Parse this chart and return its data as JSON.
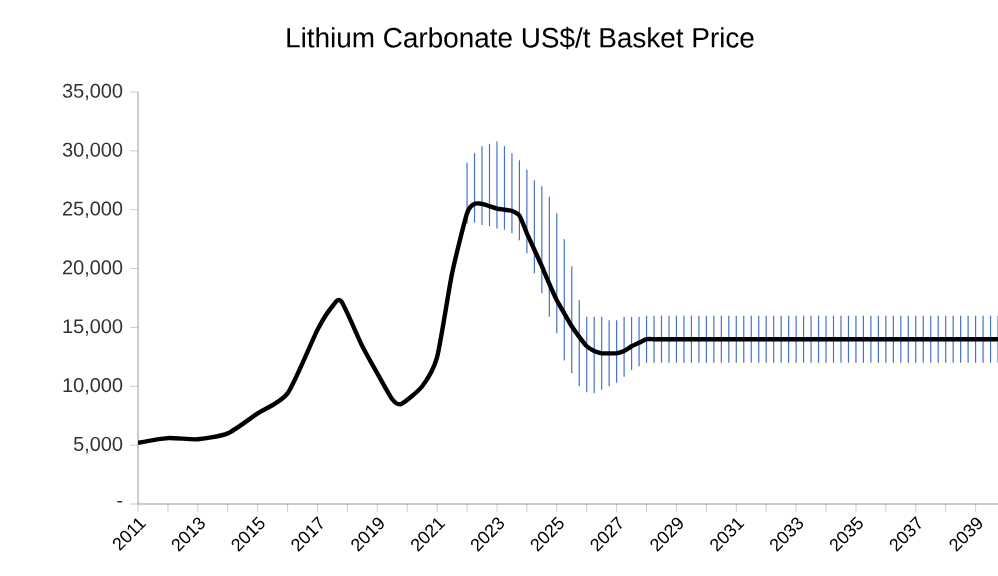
{
  "chart_data": {
    "type": "line",
    "title": "Lithium Carbonate US$/t Basket Price",
    "series": [
      {
        "color": "#000000",
        "marker": "none",
        "line_style": "solid",
        "x": [
          2011,
          2012,
          2013,
          2014,
          2015,
          2016,
          2017,
          2017.5,
          2017.8,
          2018.5,
          2019,
          2019.5,
          2019.8,
          2020.5,
          2021,
          2021.5,
          2022,
          2022.25,
          2022.5,
          2022.75,
          2023,
          2023.25,
          2023.5,
          2023.75,
          2024,
          2024.25,
          2024.5,
          2024.75,
          2025,
          2025.25,
          2025.5,
          2025.75,
          2026,
          2026.25,
          2026.5,
          2026.75,
          2027,
          2027.25,
          2027.5,
          2027.75,
          2028,
          2028.25,
          2028.5,
          2028.75,
          2029,
          2029.25,
          2029.5,
          2029.75,
          2030,
          2030.25,
          2030.5,
          2030.75,
          2031,
          2031.25,
          2031.5,
          2031.75,
          2032,
          2032.25,
          2032.5,
          2032.75,
          2033,
          2033.25,
          2033.5,
          2033.75,
          2034,
          2034.25,
          2034.5,
          2034.75,
          2035,
          2035.25,
          2035.5,
          2035.75,
          2036,
          2036.25,
          2036.5,
          2036.75,
          2037,
          2037.25,
          2037.5,
          2037.75,
          2038,
          2038.25,
          2038.5,
          2038.75,
          2039,
          2039.25,
          2039.5,
          2039.75
        ],
        "values": [
          5200,
          5600,
          5500,
          6000,
          7700,
          9400,
          14800,
          16800,
          17200,
          13400,
          11100,
          8900,
          8500,
          10000,
          12500,
          19600,
          24700,
          25500,
          25500,
          25300,
          25100,
          25000,
          24900,
          24500,
          23000,
          21600,
          20200,
          18700,
          17300,
          16200,
          15100,
          14200,
          13400,
          13000,
          12800,
          12800,
          12800,
          13000,
          13400,
          13700,
          14000,
          14000,
          14000,
          14000,
          14000,
          14000,
          14000,
          14000,
          14000,
          14000,
          14000,
          14000,
          14000,
          14000,
          14000,
          14000,
          14000,
          14000,
          14000,
          14000,
          14000,
          14000,
          14000,
          14000,
          14000,
          14000,
          14000,
          14000,
          14000,
          14000,
          14000,
          14000,
          14000,
          14000,
          14000,
          14000,
          14000,
          14000,
          14000,
          14000,
          14000,
          14000,
          14000,
          14000,
          14000,
          14000,
          14000,
          14000
        ],
        "errors": [
          null,
          null,
          null,
          null,
          null,
          null,
          null,
          null,
          null,
          null,
          null,
          null,
          null,
          null,
          null,
          null,
          [
            23800,
            29000
          ],
          [
            23900,
            29800
          ],
          [
            23700,
            30400
          ],
          [
            23600,
            30600
          ],
          [
            23400,
            30800
          ],
          [
            23300,
            30400
          ],
          [
            23000,
            29800
          ],
          [
            22400,
            29200
          ],
          [
            21300,
            28400
          ],
          [
            19600,
            27500
          ],
          [
            17900,
            27000
          ],
          [
            15900,
            26100
          ],
          [
            14500,
            24700
          ],
          [
            12200,
            22500
          ],
          [
            11100,
            20200
          ],
          [
            10000,
            17300
          ],
          [
            9500,
            15900
          ],
          [
            9400,
            15900
          ],
          [
            9700,
            15900
          ],
          [
            10000,
            15600
          ],
          [
            10300,
            15600
          ],
          [
            10800,
            15900
          ],
          [
            11400,
            15900
          ],
          [
            11700,
            15900
          ],
          [
            12000,
            16000
          ],
          [
            12000,
            16000
          ],
          [
            12000,
            16000
          ],
          [
            12000,
            16000
          ],
          [
            12000,
            16000
          ],
          [
            12000,
            16000
          ],
          [
            12000,
            16000
          ],
          [
            12000,
            16000
          ],
          [
            12000,
            16000
          ],
          [
            12000,
            16000
          ],
          [
            12000,
            16000
          ],
          [
            12000,
            16000
          ],
          [
            12000,
            16000
          ],
          [
            12000,
            16000
          ],
          [
            12000,
            16000
          ],
          [
            12000,
            16000
          ],
          [
            12000,
            16000
          ],
          [
            12000,
            16000
          ],
          [
            12000,
            16000
          ],
          [
            12000,
            16000
          ],
          [
            12000,
            16000
          ],
          [
            12000,
            16000
          ],
          [
            12000,
            16000
          ],
          [
            12000,
            16000
          ],
          [
            12000,
            16000
          ],
          [
            12000,
            16000
          ],
          [
            12000,
            16000
          ],
          [
            12000,
            16000
          ],
          [
            12000,
            16000
          ],
          [
            12000,
            16000
          ],
          [
            12000,
            16000
          ],
          [
            12000,
            16000
          ],
          [
            12000,
            16000
          ],
          [
            12000,
            16000
          ],
          [
            12000,
            16000
          ],
          [
            12000,
            16000
          ],
          [
            12000,
            16000
          ],
          [
            12000,
            16000
          ],
          [
            12000,
            16000
          ],
          [
            12000,
            16000
          ],
          [
            12000,
            16000
          ],
          [
            12000,
            16000
          ],
          [
            12000,
            16000
          ],
          [
            12000,
            16000
          ],
          [
            12000,
            16000
          ],
          [
            12000,
            16000
          ],
          [
            12000,
            16000
          ],
          [
            12000,
            16000
          ]
        ]
      }
    ],
    "xlim": [
      2011,
      2039.75
    ],
    "xticks": [
      2011,
      {
        "value": 2012,
        "label": null
      },
      2013,
      {
        "value": 2014,
        "label": null
      },
      2015,
      {
        "value": 2016,
        "label": null
      },
      2017,
      {
        "value": 2018,
        "label": null
      },
      2019,
      {
        "value": 2020,
        "label": null
      },
      2021,
      {
        "value": 2022,
        "label": null
      },
      2023,
      {
        "value": 2024,
        "label": null
      },
      2025,
      {
        "value": 2026,
        "label": null
      },
      2027,
      {
        "value": 2028,
        "label": null
      },
      2029,
      {
        "value": 2030,
        "label": null
      },
      2031,
      {
        "value": 2032,
        "label": null
      },
      2033,
      {
        "value": 2034,
        "label": null
      },
      2035,
      {
        "value": 2036,
        "label": null
      },
      2037,
      {
        "value": 2038,
        "label": null
      },
      2039
    ],
    "ylim": [
      0,
      35000
    ],
    "yticks": [
      {
        "value": 0,
        "label": "-"
      },
      {
        "value": 5000,
        "label": "5,000"
      },
      {
        "value": 10000,
        "label": "10,000"
      },
      {
        "value": 15000,
        "label": "15,000"
      },
      {
        "value": 20000,
        "label": "20,000"
      },
      {
        "value": 25000,
        "label": "25,000"
      },
      {
        "value": 30000,
        "label": "30,000"
      },
      {
        "value": 35000,
        "label": "35,000"
      }
    ],
    "grid": false
  }
}
